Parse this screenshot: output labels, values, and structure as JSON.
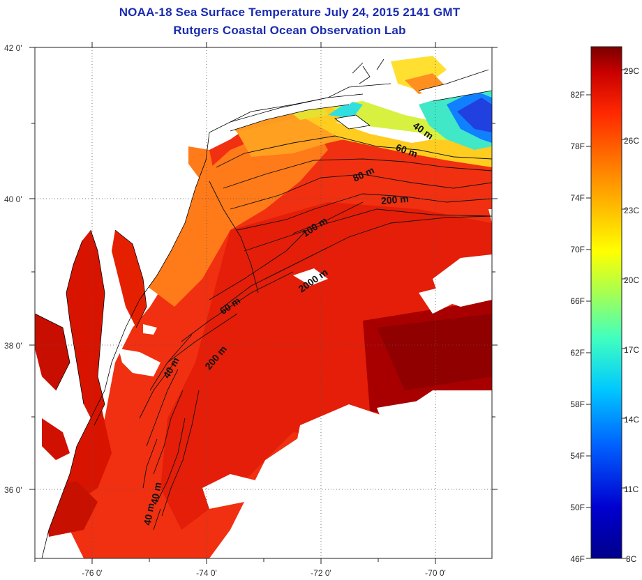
{
  "title": "NOAA-18 Sea Surface Temperature July 24, 2015 2141 GMT",
  "subtitle": "Rutgers Coastal Ocean Observation Lab",
  "map": {
    "lon_range": [
      -77.0,
      -69.0
    ],
    "lat_range": [
      35.0,
      42.0
    ],
    "lat_ticks": [
      "42 0'",
      "40 0'",
      "38 0'",
      "36 0'"
    ],
    "lon_ticks": [
      "-76 0'",
      "-74 0'",
      "-72 0'",
      "-70 0'"
    ],
    "grid": "dotted",
    "contour_labels": [
      "40 m",
      "60 m",
      "80 m",
      "200 m",
      "100 m",
      "2000 m",
      "60 m",
      "200 m",
      "40 m",
      "40 m",
      "40 m"
    ]
  },
  "colorbar": {
    "fahrenheit": [
      "82F",
      "78F",
      "74F",
      "70F",
      "66F",
      "62F",
      "58F",
      "54F",
      "50F",
      "46F"
    ],
    "celsius": [
      "29C",
      "26C",
      "23C",
      "20C",
      "17C",
      "14C",
      "11C",
      "8C"
    ],
    "colors": [
      "#7a0000",
      "#c40000",
      "#ff2000",
      "#ff6a00",
      "#ffb000",
      "#ffe800",
      "#c8ff40",
      "#6affa0",
      "#10f0f0",
      "#00a0ff",
      "#0040ff",
      "#0000c8",
      "#00008a"
    ]
  }
}
